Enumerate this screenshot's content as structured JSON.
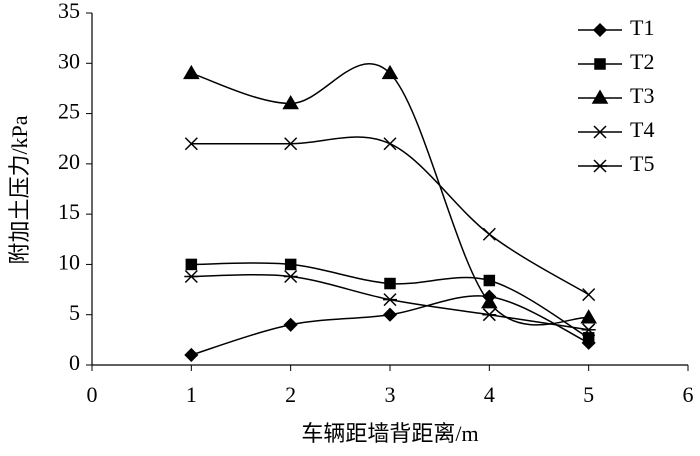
{
  "chart_data": {
    "type": "line",
    "x_label": "车辆距墙背距离/m",
    "y_label": "附加土压力/kPa",
    "x": [
      1,
      2,
      3,
      4,
      5
    ],
    "xlim": [
      0,
      6
    ],
    "xticks": [
      0,
      1,
      2,
      3,
      4,
      5,
      6
    ],
    "ylim": [
      0,
      35
    ],
    "yticks": [
      0,
      5,
      10,
      15,
      20,
      25,
      30,
      35
    ],
    "smooth": true,
    "legend": "top-right",
    "series": [
      {
        "name": "T1",
        "color": "#000000",
        "marker": "diamond",
        "values": [
          1,
          4,
          5,
          6.8,
          2.2
        ]
      },
      {
        "name": "T2",
        "color": "#000000",
        "marker": "square",
        "values": [
          10,
          10,
          8.1,
          8.4,
          2.7
        ]
      },
      {
        "name": "T3",
        "color": "#000000",
        "marker": "triangle",
        "values": [
          29,
          26,
          29,
          6.2,
          4.7
        ]
      },
      {
        "name": "T4",
        "color": "#000000",
        "marker": "x",
        "values": [
          22,
          22,
          22,
          13,
          7
        ]
      },
      {
        "name": "T5",
        "color": "#000000",
        "marker": "star",
        "values": [
          8.8,
          8.8,
          6.5,
          5,
          3.5
        ]
      }
    ]
  }
}
